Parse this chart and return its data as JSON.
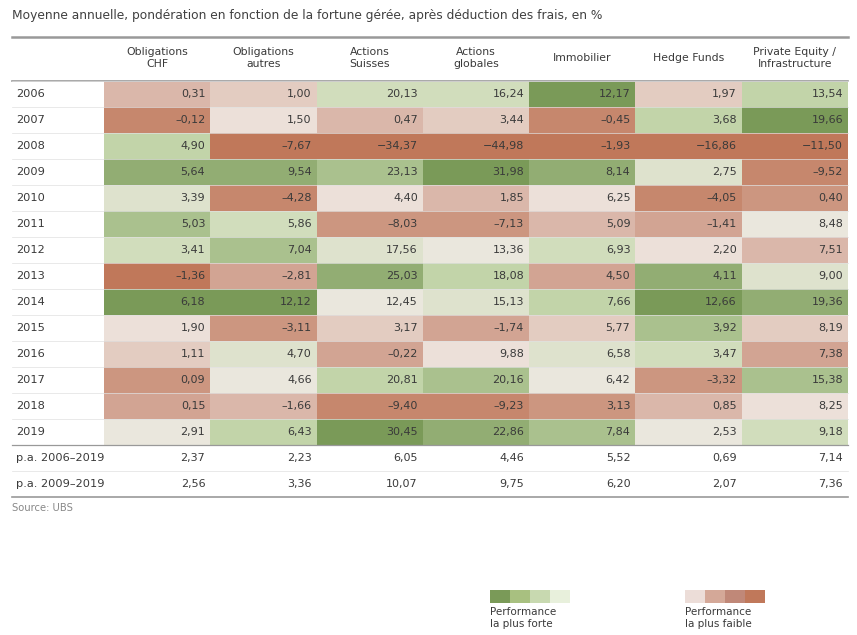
{
  "title": "Moyenne annuelle, pondération en fonction de la fortune gérée, après déduction des frais, en %",
  "columns": [
    "Obligations\nCHF",
    "Obligations\nautres",
    "Actions\nSuisses",
    "Actions\nglobales",
    "Immobilier",
    "Hedge Funds",
    "Private Equity /\nInfrastructure"
  ],
  "rows": [
    "2006",
    "2007",
    "2008",
    "2009",
    "2010",
    "2011",
    "2012",
    "2013",
    "2014",
    "2015",
    "2016",
    "2017",
    "2018",
    "2019",
    "p.a. 2006–2019",
    "p.a. 2009–2019"
  ],
  "values": [
    [
      0.31,
      1.0,
      20.13,
      16.24,
      12.17,
      1.97,
      13.54
    ],
    [
      -0.12,
      1.5,
      0.47,
      3.44,
      -0.45,
      3.68,
      19.66
    ],
    [
      4.9,
      -7.67,
      -34.37,
      -44.98,
      -1.93,
      -16.86,
      -11.5
    ],
    [
      5.64,
      9.54,
      23.13,
      31.98,
      8.14,
      2.75,
      -9.52
    ],
    [
      3.39,
      -4.28,
      4.4,
      1.85,
      6.25,
      -4.05,
      0.4
    ],
    [
      5.03,
      5.86,
      -8.03,
      -7.13,
      5.09,
      -1.41,
      8.48
    ],
    [
      3.41,
      7.04,
      17.56,
      13.36,
      6.93,
      2.2,
      7.51
    ],
    [
      -1.36,
      -2.81,
      25.03,
      18.08,
      4.5,
      4.11,
      9.0
    ],
    [
      6.18,
      12.12,
      12.45,
      15.13,
      7.66,
      12.66,
      19.36
    ],
    [
      1.9,
      -3.11,
      3.17,
      -1.74,
      5.77,
      3.92,
      8.19
    ],
    [
      1.11,
      4.7,
      -0.22,
      9.88,
      6.58,
      3.47,
      7.38
    ],
    [
      0.09,
      4.66,
      20.81,
      20.16,
      6.42,
      -3.32,
      15.38
    ],
    [
      0.15,
      -1.66,
      -9.4,
      -9.23,
      3.13,
      0.85,
      8.25
    ],
    [
      2.91,
      6.43,
      30.45,
      22.86,
      7.84,
      2.53,
      9.18
    ],
    [
      2.37,
      2.23,
      6.05,
      4.46,
      5.52,
      0.69,
      7.14
    ],
    [
      2.56,
      3.36,
      10.07,
      9.75,
      6.2,
      2.07,
      7.36
    ]
  ],
  "display_values": [
    [
      "0,31",
      "1,00",
      "20,13",
      "16,24",
      "12,17",
      "1,97",
      "13,54"
    ],
    [
      "–0,12",
      "1,50",
      "0,47",
      "3,44",
      "–0,45",
      "3,68",
      "19,66"
    ],
    [
      "4,90",
      "–7,67",
      "−34,37",
      "−44,98",
      "–1,93",
      "−16,86",
      "−11,50"
    ],
    [
      "5,64",
      "9,54",
      "23,13",
      "31,98",
      "8,14",
      "2,75",
      "–9,52"
    ],
    [
      "3,39",
      "–4,28",
      "4,40",
      "1,85",
      "6,25",
      "–4,05",
      "0,40"
    ],
    [
      "5,03",
      "5,86",
      "–8,03",
      "–7,13",
      "5,09",
      "–1,41",
      "8,48"
    ],
    [
      "3,41",
      "7,04",
      "17,56",
      "13,36",
      "6,93",
      "2,20",
      "7,51"
    ],
    [
      "–1,36",
      "–2,81",
      "25,03",
      "18,08",
      "4,50",
      "4,11",
      "9,00"
    ],
    [
      "6,18",
      "12,12",
      "12,45",
      "15,13",
      "7,66",
      "12,66",
      "19,36"
    ],
    [
      "1,90",
      "–3,11",
      "3,17",
      "–1,74",
      "5,77",
      "3,92",
      "8,19"
    ],
    [
      "1,11",
      "4,70",
      "–0,22",
      "9,88",
      "6,58",
      "3,47",
      "7,38"
    ],
    [
      "0,09",
      "4,66",
      "20,81",
      "20,16",
      "6,42",
      "–3,32",
      "15,38"
    ],
    [
      "0,15",
      "–1,66",
      "–9,40",
      "–9,23",
      "3,13",
      "0,85",
      "8,25"
    ],
    [
      "2,91",
      "6,43",
      "30,45",
      "22,86",
      "7,84",
      "2,53",
      "9,18"
    ],
    [
      "2,37",
      "2,23",
      "6,05",
      "4,46",
      "5,52",
      "0,69",
      "7,14"
    ],
    [
      "2,56",
      "3,36",
      "10,07",
      "9,75",
      "6,20",
      "2,07",
      "7,36"
    ]
  ],
  "bg_color": "#ffffff",
  "title_color": "#404040",
  "text_color": "#3a3a3a",
  "green_strong": "#7a9a58",
  "green_mid": "#a8c080",
  "green_light": "#c8d9b0",
  "green_pale": "#e4eedd",
  "neutral": "#f5f0eb",
  "red_pale": "#ecddd8",
  "red_light": "#e0c0b4",
  "red_mid": "#cfa090",
  "red_strong": "#c0785a",
  "source": "Source: UBS",
  "legend_perf_forte": "Performance\nla plus forte",
  "legend_perf_faible": "Performance\nla plus faible"
}
